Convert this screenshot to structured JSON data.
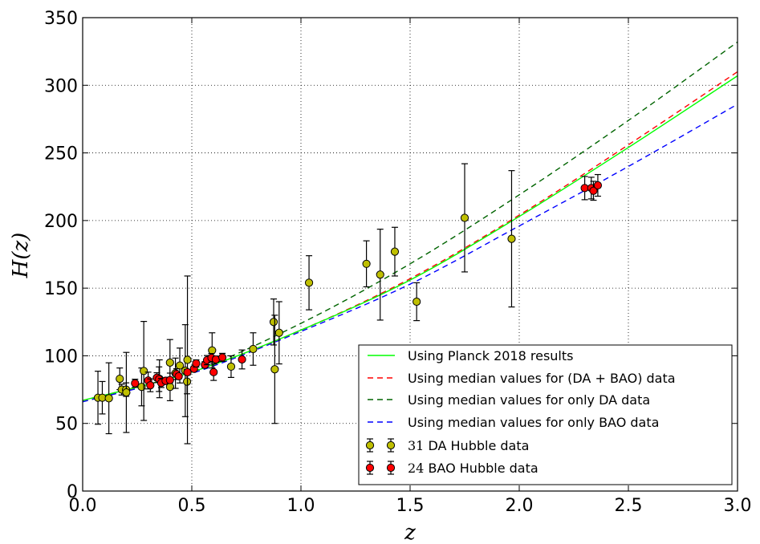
{
  "chart_data": {
    "type": "scatter",
    "xlabel": "z",
    "ylabel": "H(z)",
    "xlim": [
      0,
      3
    ],
    "ylim": [
      0,
      350
    ],
    "x_ticks": [
      "0.0",
      "0.5",
      "1.0",
      "1.5",
      "2.0",
      "2.5",
      "3.0"
    ],
    "y_ticks": [
      "0",
      "50",
      "100",
      "150",
      "200",
      "250",
      "300",
      "350"
    ],
    "grid": true,
    "legend_position": "lower-right",
    "lines": [
      {
        "name": "Using Planck 2018 results",
        "color": "#00ff00",
        "style": "solid",
        "points": [
          [
            0,
            67
          ],
          [
            0.5,
            88
          ],
          [
            1.0,
            119
          ],
          [
            1.5,
            156
          ],
          [
            2.0,
            203
          ],
          [
            2.5,
            254
          ],
          [
            3.0,
            307
          ]
        ]
      },
      {
        "name": "Using median values for (DA + BAO) data",
        "color": "#ff0000",
        "style": "dashed",
        "points": [
          [
            0,
            67
          ],
          [
            0.5,
            88
          ],
          [
            1.0,
            119
          ],
          [
            1.5,
            157
          ],
          [
            2.0,
            204
          ],
          [
            2.5,
            256
          ],
          [
            3.0,
            310
          ]
        ]
      },
      {
        "name": "Using median values for only DA data",
        "color": "#006400",
        "style": "dashed",
        "points": [
          [
            0,
            66
          ],
          [
            0.5,
            88
          ],
          [
            1.0,
            124
          ],
          [
            1.5,
            168
          ],
          [
            2.0,
            219
          ],
          [
            2.5,
            274
          ],
          [
            3.0,
            332
          ]
        ]
      },
      {
        "name": "Using median values for only BAO data",
        "color": "#0000ff",
        "style": "dashed",
        "points": [
          [
            0,
            66
          ],
          [
            0.5,
            87
          ],
          [
            1.0,
            118
          ],
          [
            1.5,
            153
          ],
          [
            2.0,
            196
          ],
          [
            2.5,
            240
          ],
          [
            3.0,
            286
          ]
        ]
      }
    ],
    "series": [
      {
        "name": "31 DA Hubble data",
        "legend_number": "31",
        "legend_rest": " DA Hubble data",
        "color": "#bfbf00",
        "points": [
          {
            "x": 0.07,
            "y": 69,
            "err": 19.6
          },
          {
            "x": 0.09,
            "y": 69,
            "err": 12
          },
          {
            "x": 0.12,
            "y": 68.6,
            "err": 26.2
          },
          {
            "x": 0.17,
            "y": 83,
            "err": 8
          },
          {
            "x": 0.179,
            "y": 75,
            "err": 4
          },
          {
            "x": 0.199,
            "y": 75,
            "err": 5
          },
          {
            "x": 0.2,
            "y": 72.9,
            "err": 29.6
          },
          {
            "x": 0.27,
            "y": 77,
            "err": 14
          },
          {
            "x": 0.28,
            "y": 88.8,
            "err": 36.6
          },
          {
            "x": 0.352,
            "y": 83,
            "err": 14
          },
          {
            "x": 0.38,
            "y": 81.5,
            "err": 1.9
          },
          {
            "x": 0.4,
            "y": 95,
            "err": 17
          },
          {
            "x": 0.4004,
            "y": 77,
            "err": 10.2
          },
          {
            "x": 0.425,
            "y": 87.1,
            "err": 11.2
          },
          {
            "x": 0.445,
            "y": 92.8,
            "err": 12.9
          },
          {
            "x": 0.47,
            "y": 89,
            "err": 34
          },
          {
            "x": 0.4783,
            "y": 80.9,
            "err": 9
          },
          {
            "x": 0.48,
            "y": 97,
            "err": 62
          },
          {
            "x": 0.593,
            "y": 104,
            "err": 13
          },
          {
            "x": 0.68,
            "y": 92,
            "err": 8
          },
          {
            "x": 0.781,
            "y": 105,
            "err": 12
          },
          {
            "x": 0.875,
            "y": 125,
            "err": 17
          },
          {
            "x": 0.88,
            "y": 90,
            "err": 40
          },
          {
            "x": 0.9,
            "y": 117,
            "err": 23
          },
          {
            "x": 1.037,
            "y": 154,
            "err": 20
          },
          {
            "x": 1.3,
            "y": 168,
            "err": 17
          },
          {
            "x": 1.363,
            "y": 160,
            "err": 33.6
          },
          {
            "x": 1.43,
            "y": 177,
            "err": 18
          },
          {
            "x": 1.53,
            "y": 140,
            "err": 14
          },
          {
            "x": 1.75,
            "y": 202,
            "err": 40
          },
          {
            "x": 1.965,
            "y": 186.5,
            "err": 50.4
          }
        ]
      },
      {
        "name": "24 BAO Hubble data",
        "legend_number": "24",
        "legend_rest": " BAO Hubble data",
        "color": "#ff0000",
        "points": [
          {
            "x": 0.24,
            "y": 79.69,
            "err": 2.99
          },
          {
            "x": 0.3,
            "y": 81.7,
            "err": 6.22
          },
          {
            "x": 0.31,
            "y": 78.18,
            "err": 4.74
          },
          {
            "x": 0.34,
            "y": 83.8,
            "err": 3.66
          },
          {
            "x": 0.35,
            "y": 82.7,
            "err": 9.1
          },
          {
            "x": 0.36,
            "y": 79.94,
            "err": 3.38
          },
          {
            "x": 0.38,
            "y": 81.5,
            "err": 1.9
          },
          {
            "x": 0.4,
            "y": 82.04,
            "err": 2.03
          },
          {
            "x": 0.43,
            "y": 86.45,
            "err": 3.97
          },
          {
            "x": 0.44,
            "y": 84.81,
            "err": 1.83
          },
          {
            "x": 0.48,
            "y": 87.79,
            "err": 2.03
          },
          {
            "x": 0.51,
            "y": 90.4,
            "err": 1.9
          },
          {
            "x": 0.52,
            "y": 94.35,
            "err": 2.64
          },
          {
            "x": 0.56,
            "y": 93.34,
            "err": 2.3
          },
          {
            "x": 0.57,
            "y": 96.8,
            "err": 3.4
          },
          {
            "x": 0.59,
            "y": 98.48,
            "err": 3.19
          },
          {
            "x": 0.6,
            "y": 87.9,
            "err": 6.1
          },
          {
            "x": 0.61,
            "y": 97.3,
            "err": 2.1
          },
          {
            "x": 0.64,
            "y": 98.82,
            "err": 2.98
          },
          {
            "x": 0.73,
            "y": 97.3,
            "err": 7
          },
          {
            "x": 2.3,
            "y": 224,
            "err": 8.6
          },
          {
            "x": 2.33,
            "y": 224,
            "err": 8
          },
          {
            "x": 2.34,
            "y": 222,
            "err": 7
          },
          {
            "x": 2.36,
            "y": 226,
            "err": 8
          }
        ]
      }
    ]
  }
}
